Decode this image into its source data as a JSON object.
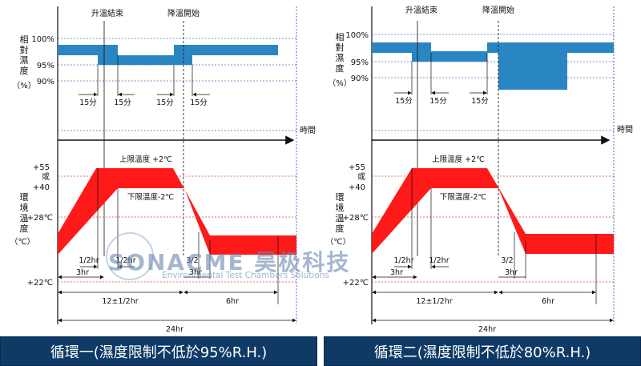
{
  "panels": [
    {
      "labels": {
        "rise_end": "升溫結束",
        "fall_start": "降溫開始",
        "humidity_axis": [
          "相",
          "對",
          "濕",
          "度"
        ],
        "humidity_unit": "（%）",
        "h100": "100%",
        "h95": "95%",
        "h90": "90%",
        "min15": [
          "15分",
          "15分",
          "15分",
          "15分"
        ],
        "time": "時間",
        "upper_temp": "上限溫度 +2℃",
        "lower_temp": "下限溫度-2℃",
        "t55": "+55",
        "t_or": "或",
        "t40": "+40",
        "temp_axis": [
          "環",
          "境",
          "溫",
          "度"
        ],
        "temp_unit": "（℃）",
        "t28": "+28℃",
        "t22": "+22℃",
        "half_hr_a": "1/2hr",
        "half_hr_b": "1/2hr",
        "three_hr_a": "3hr",
        "three_two": "3/2",
        "three_hr_b": "3hr",
        "twelve_hr": "12±1/2hr",
        "six_hr": "6hr",
        "day": "24hr"
      },
      "caption": "循環一(濕度限制不低於95%R.H.)"
    },
    {
      "labels": {
        "rise_end": "升溫結束",
        "fall_start": "降溫開始",
        "humidity_axis": [
          "相",
          "對",
          "濕",
          "度"
        ],
        "humidity_unit": "（%）",
        "h100": "100%",
        "h95": "95%",
        "h90": "90%",
        "min15": [
          "15分",
          "15分",
          "15分"
        ],
        "time": "時間",
        "upper_temp": "上限溫度 +2℃",
        "lower_temp": "下限溫度-2℃",
        "t55": "+55",
        "t_or": "或",
        "t40": "+40",
        "temp_axis": [
          "環",
          "境",
          "溫",
          "度"
        ],
        "temp_unit": "（℃）",
        "t28": "+28℃",
        "t22": "+22℃",
        "half_hr_a": "1/2hr",
        "half_hr_b": "1/2hr",
        "three_hr_a": "3hr",
        "three_two": "3/2",
        "three_hr_b": "3hr",
        "twelve_hr": "12±1/2hr",
        "six_hr": "6hr",
        "day": "24hr"
      },
      "caption": "循環二(濕度限制不低於80%R.H.)"
    }
  ],
  "watermark": {
    "name": "SONACME 昊极科技",
    "subtitle": "Environmental Test Chambers Solutions"
  },
  "colors": {
    "humidity_band": "#2a86c2",
    "temperature_band": "#ff1a1a",
    "footer_bg": "#0f3a66",
    "guide_blue": "#4a72c8",
    "guide_red": "#e04040"
  }
}
